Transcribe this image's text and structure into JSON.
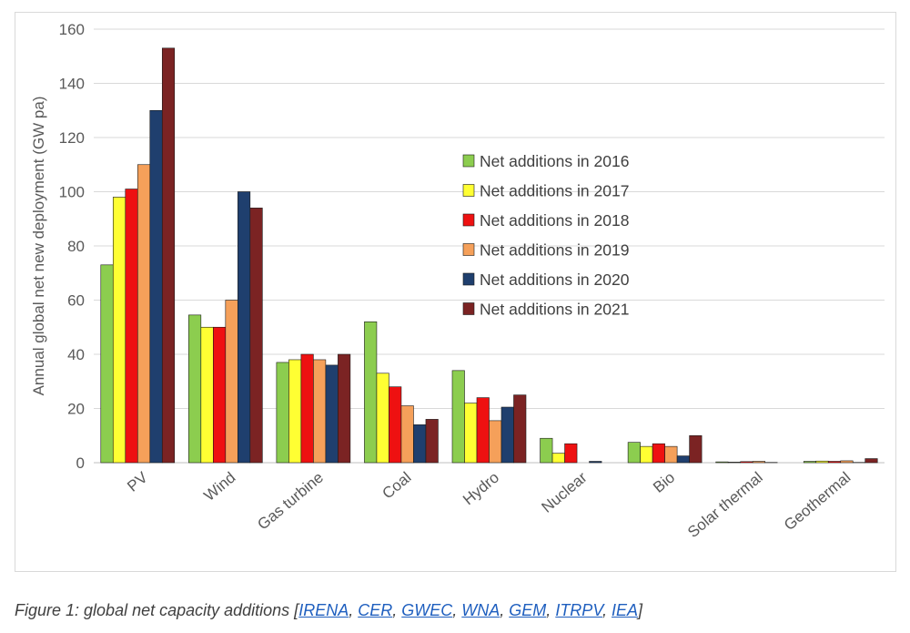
{
  "chart_data": {
    "type": "bar",
    "title": "",
    "xlabel": "",
    "ylabel": "Annual global net new deployment (GW pa)",
    "ylim": [
      0,
      160
    ],
    "yticks": [
      0,
      20,
      40,
      60,
      80,
      100,
      120,
      140,
      160
    ],
    "grid": true,
    "legend_position": "center-right",
    "categories": [
      "PV",
      "Wind",
      "Gas turbine",
      "Coal",
      "Hydro",
      "Nuclear",
      "Bio",
      "Solar thermal",
      "Geothermal"
    ],
    "series": [
      {
        "name": "Net additions in 2016",
        "color": "#8ccd4f",
        "values": [
          73,
          54.5,
          37,
          52,
          34,
          9,
          7.5,
          0.3,
          0.5
        ]
      },
      {
        "name": "Net additions in 2017",
        "color": "#ffff33",
        "values": [
          98,
          50,
          38,
          33,
          22,
          3.5,
          6,
          0.2,
          0.6
        ]
      },
      {
        "name": "Net additions in 2018",
        "color": "#ee1111",
        "values": [
          101,
          50,
          40,
          28,
          24,
          7,
          7,
          0.4,
          0.5
        ]
      },
      {
        "name": "Net additions in 2019",
        "color": "#f5a05a",
        "values": [
          110,
          60,
          38,
          21,
          15.5,
          0,
          6,
          0.5,
          0.7
        ]
      },
      {
        "name": "Net additions in 2020",
        "color": "#1f3f6e",
        "values": [
          130,
          100,
          36,
          14,
          20.5,
          0.5,
          2.5,
          0.1,
          0.1
        ]
      },
      {
        "name": "Net additions in 2021",
        "color": "#7b2323",
        "values": [
          153,
          94,
          40,
          16,
          25,
          0,
          10,
          0,
          1.5
        ]
      }
    ]
  },
  "caption": {
    "prefix": "Figure 1: global net capacity additions [",
    "links": [
      "IRENA",
      "CER",
      "GWEC",
      "WNA",
      "GEM",
      "ITRPV",
      "IEA"
    ],
    "separator": ", ",
    "suffix": "]"
  }
}
